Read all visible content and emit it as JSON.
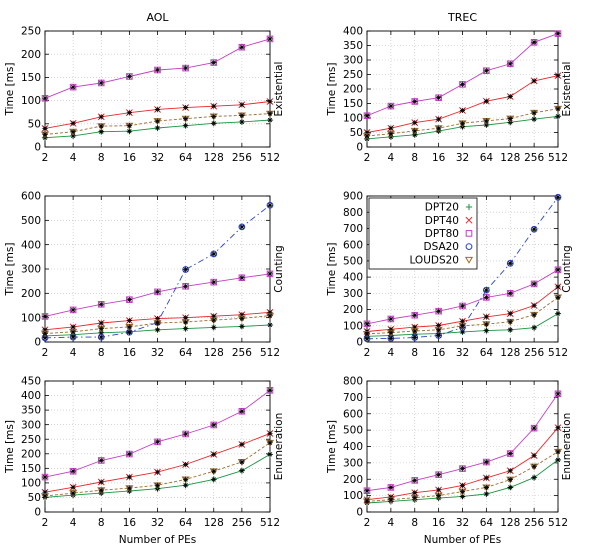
{
  "chart_data": [
    {
      "type": "line",
      "panel": "existential-aol",
      "title": "AOL",
      "row_label": "Existential",
      "ylabel": "Time [ms]",
      "xlabel": "",
      "x": [
        2,
        4,
        8,
        16,
        32,
        64,
        128,
        256,
        512
      ],
      "x_scale": "log2",
      "ylim": [
        0,
        250
      ],
      "yticks": [
        0,
        50,
        100,
        150,
        200,
        250
      ],
      "grid": true,
      "legend": "none",
      "series": [
        {
          "name": "DPT20",
          "values": [
            20,
            24,
            33,
            34,
            41,
            46,
            51,
            54,
            58
          ]
        },
        {
          "name": "DPT40",
          "values": [
            40,
            51,
            65,
            74,
            81,
            85,
            88,
            91,
            98
          ]
        },
        {
          "name": "DPT80",
          "values": [
            105,
            129,
            138,
            152,
            166,
            170,
            182,
            215,
            233
          ]
        },
        {
          "name": "LOUDS20",
          "values": [
            27,
            33,
            45,
            46,
            56,
            61,
            66,
            68,
            72
          ]
        }
      ]
    },
    {
      "type": "line",
      "panel": "existential-trec",
      "title": "TREC",
      "row_label": "Existential",
      "ylabel": "Time [ms]",
      "xlabel": "",
      "x": [
        2,
        4,
        8,
        16,
        32,
        64,
        128,
        256,
        512
      ],
      "x_scale": "log2",
      "ylim": [
        0,
        400
      ],
      "yticks": [
        0,
        50,
        100,
        150,
        200,
        250,
        300,
        350,
        400
      ],
      "grid": true,
      "legend": "none",
      "series": [
        {
          "name": "DPT20",
          "values": [
            28,
            35,
            42,
            55,
            70,
            76,
            85,
            96,
            106
          ]
        },
        {
          "name": "DPT40",
          "values": [
            50,
            65,
            84,
            96,
            126,
            158,
            174,
            228,
            246
          ]
        },
        {
          "name": "DPT80",
          "values": [
            108,
            141,
            157,
            170,
            216,
            263,
            287,
            361,
            391
          ]
        },
        {
          "name": "LOUDS20",
          "values": [
            38,
            46,
            56,
            65,
            82,
            90,
            98,
            118,
            132
          ]
        }
      ]
    },
    {
      "type": "line",
      "panel": "counting-aol",
      "title": "",
      "row_label": "Counting",
      "ylabel": "Time [ms]",
      "xlabel": "",
      "x": [
        2,
        4,
        8,
        16,
        32,
        64,
        128,
        256,
        512
      ],
      "x_scale": "log2",
      "ylim": [
        0,
        600
      ],
      "yticks": [
        0,
        100,
        200,
        300,
        400,
        500,
        600
      ],
      "grid": true,
      "legend": "none",
      "series": [
        {
          "name": "DPT20",
          "values": [
            25,
            30,
            38,
            42,
            50,
            55,
            60,
            64,
            70
          ]
        },
        {
          "name": "DPT40",
          "values": [
            50,
            62,
            78,
            88,
            96,
            100,
            106,
            112,
            122
          ]
        },
        {
          "name": "DPT80",
          "values": [
            105,
            132,
            155,
            174,
            206,
            229,
            246,
            264,
            280
          ]
        },
        {
          "name": "DSA20",
          "values": [
            17,
            20,
            20,
            40,
            80,
            298,
            362,
            473,
            562
          ]
        },
        {
          "name": "LOUDS20",
          "values": [
            35,
            42,
            55,
            62,
            78,
            82,
            90,
            97,
            108
          ]
        }
      ]
    },
    {
      "type": "line",
      "panel": "counting-trec",
      "title": "",
      "row_label": "Counting",
      "ylabel": "Time [ms]",
      "xlabel": "",
      "x": [
        2,
        4,
        8,
        16,
        32,
        64,
        128,
        256,
        512
      ],
      "x_scale": "log2",
      "ylim": [
        0,
        900
      ],
      "yticks": [
        0,
        100,
        200,
        300,
        400,
        500,
        600,
        700,
        800,
        900
      ],
      "grid": true,
      "legend": "top-left",
      "series": [
        {
          "name": "DPT20",
          "values": [
            35,
            40,
            48,
            52,
            62,
            70,
            75,
            88,
            175
          ]
        },
        {
          "name": "DPT40",
          "values": [
            65,
            78,
            92,
            102,
            128,
            155,
            175,
            225,
            340
          ]
        },
        {
          "name": "DPT80",
          "values": [
            112,
            142,
            165,
            190,
            222,
            275,
            300,
            358,
            445
          ]
        },
        {
          "name": "DSA20",
          "values": [
            20,
            22,
            28,
            40,
            90,
            320,
            485,
            695,
            892
          ]
        },
        {
          "name": "LOUDS20",
          "values": [
            50,
            58,
            68,
            75,
            100,
            110,
            125,
            168,
            275
          ]
        }
      ]
    },
    {
      "type": "line",
      "panel": "enumeration-aol",
      "title": "",
      "row_label": "Enumeration",
      "ylabel": "Time [ms]",
      "xlabel": "Number of PEs",
      "x": [
        2,
        4,
        8,
        16,
        32,
        64,
        128,
        256,
        512
      ],
      "x_scale": "log2",
      "ylim": [
        0,
        450
      ],
      "yticks": [
        0,
        50,
        100,
        150,
        200,
        250,
        300,
        350,
        400,
        450
      ],
      "grid": true,
      "legend": "none",
      "series": [
        {
          "name": "DPT20",
          "values": [
            50,
            58,
            65,
            72,
            80,
            92,
            112,
            142,
            198
          ]
        },
        {
          "name": "DPT40",
          "values": [
            68,
            85,
            103,
            120,
            137,
            163,
            198,
            232,
            270
          ]
        },
        {
          "name": "DPT80",
          "values": [
            120,
            140,
            177,
            199,
            241,
            268,
            299,
            346,
            418
          ]
        },
        {
          "name": "LOUDS20",
          "values": [
            55,
            65,
            75,
            82,
            92,
            112,
            140,
            172,
            238
          ]
        }
      ]
    },
    {
      "type": "line",
      "panel": "enumeration-trec",
      "title": "",
      "row_label": "Enumeration",
      "ylabel": "Time [ms]",
      "xlabel": "Number of PEs",
      "x": [
        2,
        4,
        8,
        16,
        32,
        64,
        128,
        256,
        512
      ],
      "x_scale": "log2",
      "ylim": [
        0,
        800
      ],
      "yticks": [
        0,
        100,
        200,
        300,
        400,
        500,
        600,
        700,
        800
      ],
      "grid": true,
      "legend": "none",
      "series": [
        {
          "name": "DPT20",
          "values": [
            55,
            65,
            75,
            85,
            95,
            110,
            150,
            210,
            318
          ]
        },
        {
          "name": "DPT40",
          "values": [
            75,
            92,
            118,
            135,
            162,
            208,
            252,
            345,
            515
          ]
        },
        {
          "name": "DPT80",
          "values": [
            130,
            150,
            193,
            228,
            265,
            305,
            357,
            512,
            722
          ]
        },
        {
          "name": "LOUDS20",
          "values": [
            65,
            75,
            88,
            100,
            125,
            150,
            198,
            278,
            368
          ]
        }
      ]
    }
  ],
  "legend_entries": [
    "DPT20",
    "DPT40",
    "DPT80",
    "DSA20",
    "LOUDS20"
  ],
  "series_style": {
    "DPT20": {
      "color": "#1a9641",
      "marker": "plus",
      "dash": ""
    },
    "DPT40": {
      "color": "#e8262b",
      "marker": "cross",
      "dash": ""
    },
    "DPT80": {
      "color": "#c53ec5",
      "marker": "square",
      "dash": ""
    },
    "DSA20": {
      "color": "#2844c4",
      "marker": "circle",
      "dash": "6,3,1.5,3"
    },
    "LOUDS20": {
      "color": "#9c6b2f",
      "marker": "triangle",
      "dash": "3,2"
    }
  },
  "overlay_marker": {
    "color": "#000000",
    "marker": "star"
  }
}
